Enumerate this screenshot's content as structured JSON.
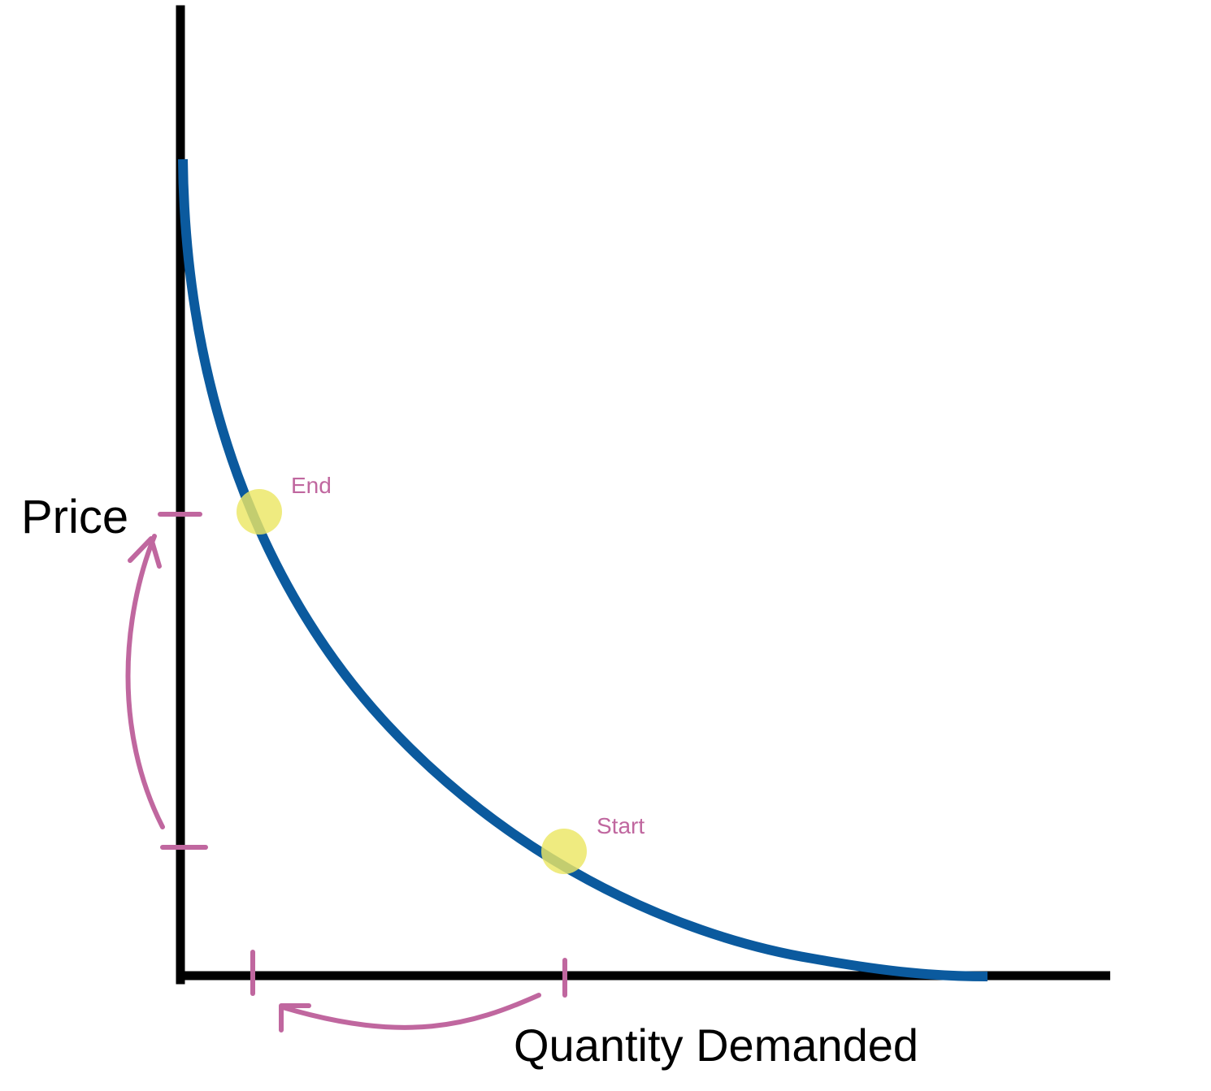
{
  "labels": {
    "y_axis": "Price",
    "x_axis": "Quantity Demanded"
  },
  "points": {
    "end_label": "End",
    "start_label": "Start"
  },
  "colors": {
    "axis": "#000000",
    "curve": "#0b5a9e",
    "annotation": "#c0679f",
    "highlight": "#ece764"
  }
}
